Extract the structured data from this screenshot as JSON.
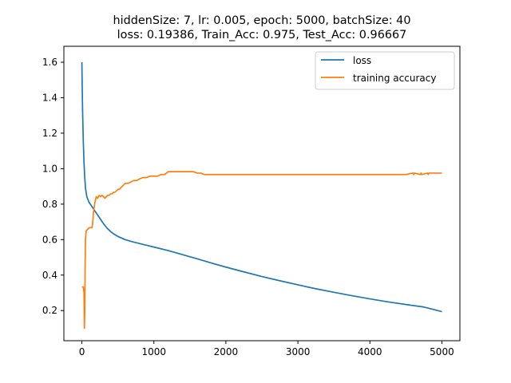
{
  "chart_data": {
    "type": "line",
    "title_lines": [
      "hiddenSize: 7, lr: 0.005, epoch: 5000, batchSize: 40",
      " loss: 0.19386, Train_Acc: 0.975, Test_Acc: 0.96667"
    ],
    "xlabel": "",
    "ylabel": "",
    "xlim": [
      -250,
      5250
    ],
    "ylim": [
      0.03,
      1.69
    ],
    "x_ticks": [
      0,
      1000,
      2000,
      3000,
      4000,
      5000
    ],
    "y_ticks": [
      0.2,
      0.4,
      0.6,
      0.8,
      1.0,
      1.2,
      1.4,
      1.6
    ],
    "x_tick_labels": [
      "0",
      "1000",
      "2000",
      "3000",
      "4000",
      "5000"
    ],
    "y_tick_labels": [
      "0.2",
      "0.4",
      "0.6",
      "0.8",
      "1.0",
      "1.2",
      "1.4",
      "1.6"
    ],
    "grid": false,
    "legend_position": "top-right",
    "series": [
      {
        "name": "loss",
        "color": "#1f77b4",
        "x": [
          0,
          5,
          10,
          20,
          30,
          40,
          50,
          70,
          100,
          150,
          200,
          250,
          300,
          350,
          400,
          450,
          500,
          600,
          700,
          800,
          900,
          1000,
          1200,
          1400,
          1600,
          1800,
          2000,
          2250,
          2500,
          2750,
          3000,
          3250,
          3500,
          3750,
          4000,
          4250,
          4500,
          4750,
          5000
        ],
        "y": [
          1.6,
          1.45,
          1.32,
          1.15,
          1.03,
          0.95,
          0.89,
          0.84,
          0.81,
          0.78,
          0.75,
          0.72,
          0.69,
          0.665,
          0.645,
          0.63,
          0.618,
          0.6,
          0.588,
          0.578,
          0.568,
          0.558,
          0.538,
          0.515,
          0.492,
          0.468,
          0.445,
          0.418,
          0.392,
          0.368,
          0.345,
          0.323,
          0.303,
          0.284,
          0.266,
          0.249,
          0.234,
          0.22,
          0.194
        ]
      },
      {
        "name": "training accuracy",
        "color": "#ff7f0e",
        "x": [
          0,
          20,
          30,
          35,
          40,
          45,
          50,
          60,
          80,
          100,
          140,
          150,
          160,
          180,
          200,
          220,
          240,
          260,
          280,
          300,
          320,
          340,
          360,
          380,
          400,
          420,
          440,
          460,
          480,
          500,
          520,
          540,
          560,
          580,
          600,
          640,
          680,
          720,
          760,
          800,
          850,
          900,
          950,
          1000,
          1050,
          1100,
          1150,
          1200,
          1250,
          1300,
          1400,
          1500,
          1550,
          1600,
          1650,
          1700,
          1800,
          2000,
          2500,
          3000,
          3500,
          4000,
          4500,
          4600,
          4610,
          4620,
          4700,
          4710,
          4720,
          4800,
          4810,
          4820,
          5000
        ],
        "y": [
          0.333,
          0.333,
          0.3,
          0.1,
          0.2,
          0.45,
          0.6,
          0.65,
          0.658,
          0.667,
          0.667,
          0.692,
          0.75,
          0.808,
          0.842,
          0.833,
          0.85,
          0.842,
          0.85,
          0.842,
          0.833,
          0.842,
          0.85,
          0.85,
          0.858,
          0.858,
          0.867,
          0.867,
          0.875,
          0.883,
          0.883,
          0.892,
          0.9,
          0.908,
          0.917,
          0.917,
          0.925,
          0.933,
          0.933,
          0.942,
          0.95,
          0.95,
          0.958,
          0.958,
          0.958,
          0.967,
          0.967,
          0.983,
          0.983,
          0.983,
          0.983,
          0.983,
          0.983,
          0.975,
          0.975,
          0.967,
          0.967,
          0.967,
          0.967,
          0.967,
          0.967,
          0.967,
          0.967,
          0.975,
          0.967,
          0.975,
          0.967,
          0.975,
          0.967,
          0.975,
          0.967,
          0.975,
          0.975
        ]
      }
    ]
  }
}
